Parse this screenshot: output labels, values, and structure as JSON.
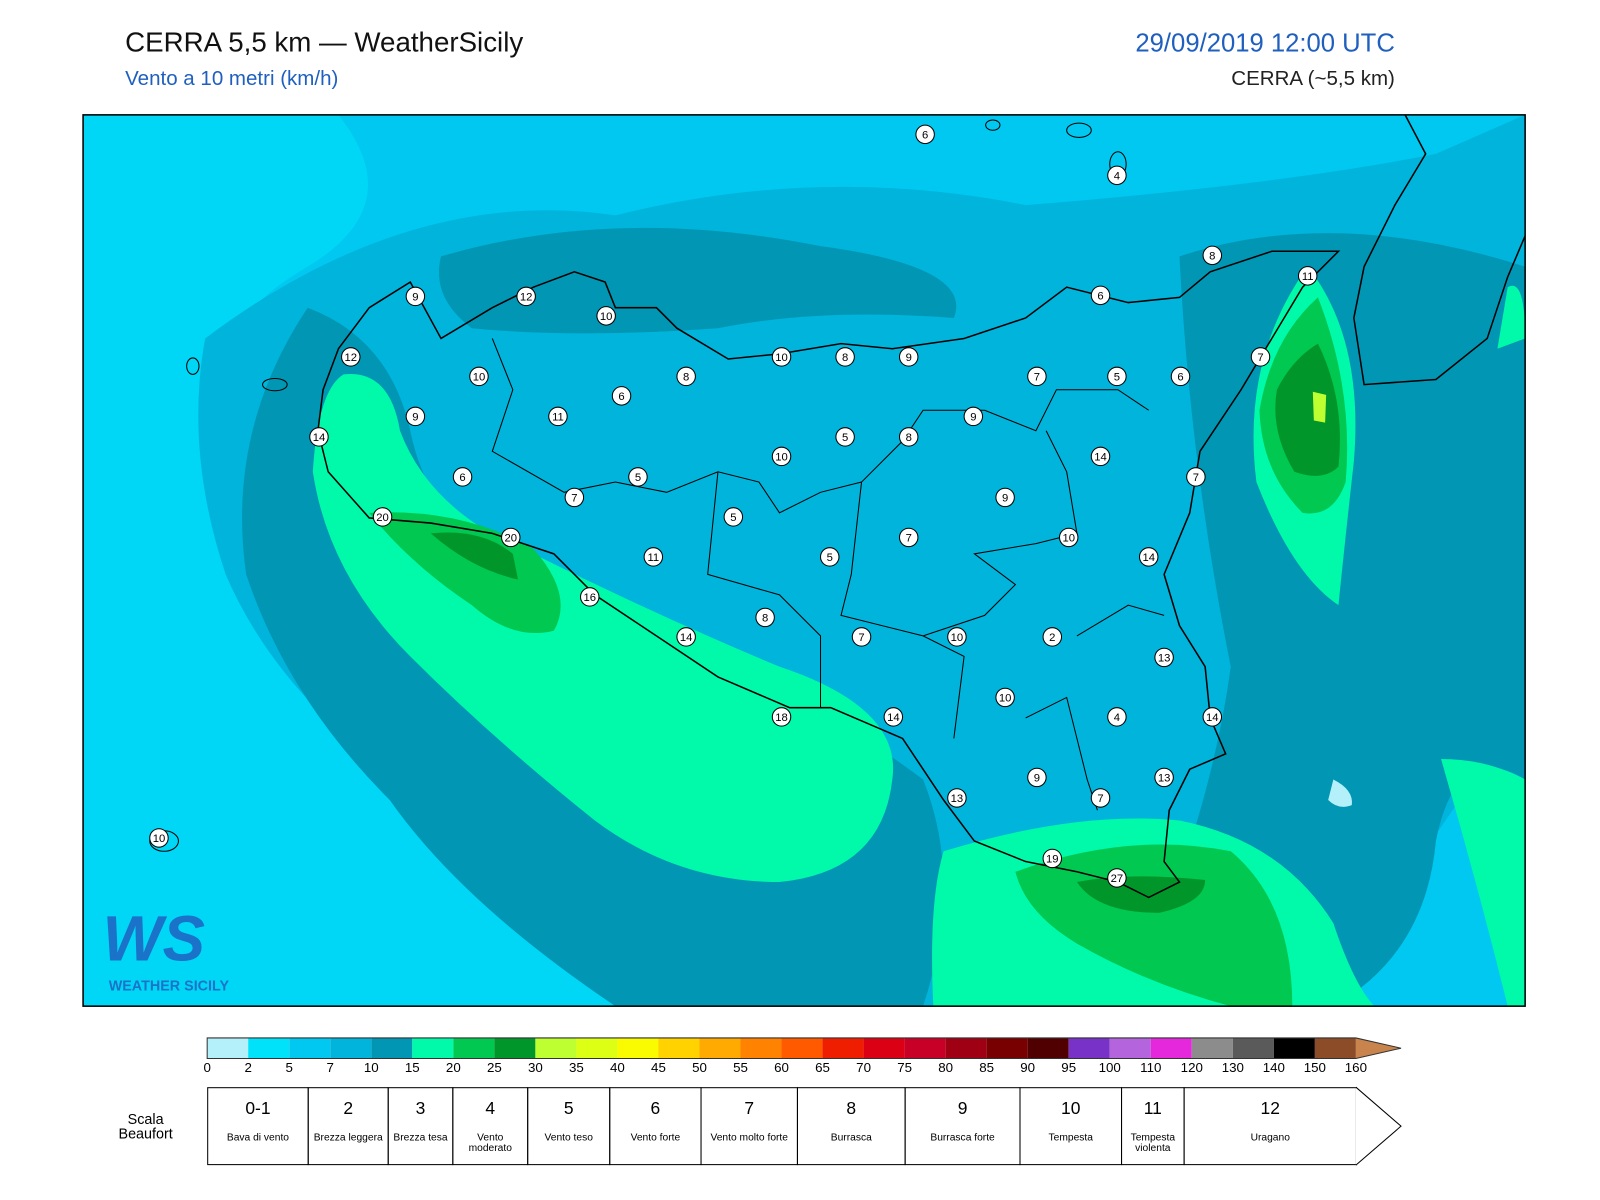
{
  "header": {
    "title": "CERRA 5,5 km — WeatherSicily",
    "subtitle": "Vento a 10 metri (km/h)",
    "datetime": "29/09/2019 12:00 UTC",
    "model": "CERRA (~5,5 km)"
  },
  "stations": [
    6,
    4,
    8,
    11,
    9,
    12,
    10,
    6,
    12,
    10,
    8,
    10,
    8,
    9,
    7,
    5,
    6,
    7,
    6,
    9,
    11,
    9,
    14,
    5,
    8,
    10,
    14,
    6,
    5,
    7,
    7,
    9,
    20,
    5,
    20,
    7,
    10,
    11,
    5,
    14,
    16,
    8,
    14,
    7,
    10,
    2,
    13,
    10,
    18,
    14,
    4,
    14,
    9,
    13,
    13,
    7,
    10,
    19,
    27
  ],
  "colorbar": {
    "ticks": [
      0,
      2,
      5,
      7,
      10,
      15,
      20,
      25,
      30,
      35,
      40,
      45,
      50,
      55,
      60,
      65,
      70,
      75,
      80,
      85,
      90,
      95,
      100,
      110,
      120,
      130,
      140,
      150,
      160
    ],
    "colors": [
      "#b4f0fa",
      "#00e1fa",
      "#00c8f0",
      "#00b4dc",
      "#0096b4",
      "#00faaa",
      "#00c850",
      "#00962a",
      "#beff32",
      "#dcff14",
      "#fafa00",
      "#ffd200",
      "#ffaa00",
      "#ff8200",
      "#ff5a00",
      "#f01e00",
      "#dc0014",
      "#c80028",
      "#a00014",
      "#780000",
      "#500000",
      "#7832c8",
      "#b464dc",
      "#e628dc",
      "#8c8c8c",
      "#5a5a5a",
      "#000000",
      "#8c4c28",
      "#c8844c"
    ]
  },
  "beaufort": {
    "title": "Scala Beaufort",
    "classes": [
      {
        "force": "0-1",
        "label": "Bava di vento"
      },
      {
        "force": "2",
        "label": "Brezza leggera"
      },
      {
        "force": "3",
        "label": "Brezza tesa"
      },
      {
        "force": "4",
        "label": "Vento moderato"
      },
      {
        "force": "5",
        "label": "Vento teso"
      },
      {
        "force": "6",
        "label": "Vento forte"
      },
      {
        "force": "7",
        "label": "Vento molto forte"
      },
      {
        "force": "8",
        "label": "Burrasca"
      },
      {
        "force": "9",
        "label": "Burrasca forte"
      },
      {
        "force": "10",
        "label": "Tempesta"
      },
      {
        "force": "11",
        "label": "Tempesta violenta"
      },
      {
        "force": "12",
        "label": "Uragano"
      }
    ]
  },
  "logo": {
    "mark": "WS",
    "name": "WEATHER SICILY"
  }
}
